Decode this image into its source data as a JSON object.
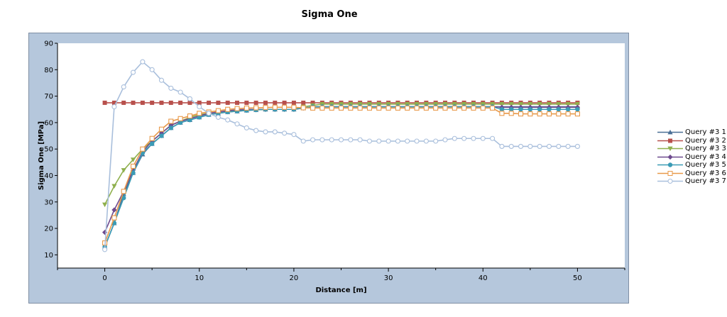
{
  "chart_data": {
    "type": "line",
    "title": "Sigma One",
    "xlabel": "Distance [m]",
    "ylabel": "Sigma One [MPa]",
    "xlim": [
      -5,
      55
    ],
    "ylim": [
      5,
      90
    ],
    "xticks": [
      0,
      10,
      20,
      30,
      40,
      50
    ],
    "yticks": [
      10,
      20,
      30,
      40,
      50,
      60,
      70,
      80,
      90
    ],
    "legend_position": "right",
    "series": [
      {
        "name": "Query #3 1",
        "color": "#4a6f96",
        "marker": "triangle-up",
        "x": [
          0,
          1,
          2,
          3,
          4,
          5,
          6,
          7,
          8,
          9,
          10,
          11,
          12,
          13,
          14,
          15,
          16,
          17,
          18,
          19,
          20,
          21,
          22,
          23,
          24,
          25,
          26,
          27,
          28,
          29,
          30,
          31,
          32,
          33,
          34,
          35,
          36,
          37,
          38,
          39,
          40,
          41,
          42,
          43,
          44,
          45,
          46,
          47,
          48,
          49,
          50
        ],
        "y": [
          13,
          22,
          33,
          41,
          48,
          52,
          55,
          58,
          60,
          61,
          62,
          63,
          63.5,
          64,
          64.3,
          64.6,
          64.8,
          65,
          65,
          65,
          65,
          65.5,
          66,
          66,
          66,
          66,
          66,
          66,
          66,
          66,
          66,
          66,
          66,
          66,
          66,
          66,
          66,
          66,
          66,
          66,
          66,
          66,
          66,
          66,
          66,
          66,
          66,
          66,
          66,
          66,
          66
        ]
      },
      {
        "name": "Query #3 2",
        "color": "#b8504c",
        "marker": "square",
        "x": [
          0,
          1,
          2,
          3,
          4,
          5,
          6,
          7,
          8,
          9,
          10,
          11,
          12,
          13,
          14,
          15,
          16,
          17,
          18,
          19,
          20,
          21,
          22,
          23,
          24,
          25,
          26,
          27,
          28,
          29,
          30,
          31,
          32,
          33,
          34,
          35,
          36,
          37,
          38,
          39,
          40,
          41,
          42,
          43,
          44,
          45,
          46,
          47,
          48,
          49,
          50
        ],
        "y": [
          67.5,
          67.5,
          67.5,
          67.5,
          67.5,
          67.5,
          67.5,
          67.5,
          67.5,
          67.5,
          67.5,
          67.5,
          67.5,
          67.5,
          67.5,
          67.5,
          67.5,
          67.5,
          67.5,
          67.5,
          67.5,
          67.5,
          67.5,
          67.5,
          67.5,
          67.5,
          67.5,
          67.5,
          67.5,
          67.5,
          67.5,
          67.5,
          67.5,
          67.5,
          67.5,
          67.5,
          67.5,
          67.5,
          67.5,
          67.5,
          67.5,
          67.5,
          67.5,
          67.5,
          67.5,
          67.5,
          67.5,
          67.5,
          67.5,
          67.5,
          67.5
        ]
      },
      {
        "name": "Query #3 3",
        "color": "#8fb04e",
        "marker": "triangle-down",
        "x": [
          0,
          1,
          2,
          3,
          4,
          5,
          6,
          7,
          8,
          9,
          10,
          11,
          12,
          13,
          14,
          15,
          16,
          17,
          18,
          19,
          20,
          21,
          22,
          23,
          24,
          25,
          26,
          27,
          28,
          29,
          30,
          31,
          32,
          33,
          34,
          35,
          36,
          37,
          38,
          39,
          40,
          41,
          42,
          43,
          44,
          45,
          46,
          47,
          48,
          49,
          50
        ],
        "y": [
          29,
          36,
          42,
          46,
          50,
          53,
          56,
          59,
          60.5,
          62,
          63,
          63.5,
          64,
          64.3,
          64.5,
          64.7,
          64.8,
          65,
          65,
          65,
          65,
          66,
          66.5,
          67,
          67,
          67,
          67,
          67,
          67,
          67,
          67,
          67,
          67,
          67,
          67,
          67,
          67,
          67,
          67,
          67,
          67,
          67,
          67,
          67,
          67,
          67,
          67,
          67,
          67,
          67,
          67
        ]
      },
      {
        "name": "Query #3 4",
        "color": "#6e4a8e",
        "marker": "diamond",
        "x": [
          0,
          1,
          2,
          3,
          4,
          5,
          6,
          7,
          8,
          9,
          10,
          11,
          12,
          13,
          14,
          15,
          16,
          17,
          18,
          19,
          20,
          21,
          22,
          23,
          24,
          25,
          26,
          27,
          28,
          29,
          30,
          31,
          32,
          33,
          34,
          35,
          36,
          37,
          38,
          39,
          40,
          41,
          42,
          43,
          44,
          45,
          46,
          47,
          48,
          49,
          50
        ],
        "y": [
          18.5,
          27,
          34,
          42,
          49,
          53,
          56,
          59,
          60.5,
          61.5,
          62.5,
          63.5,
          64,
          64.5,
          64.8,
          65,
          65,
          65,
          65,
          65,
          65,
          65.5,
          66,
          66,
          66,
          66,
          66,
          66,
          66,
          66,
          66,
          66,
          66,
          66,
          66,
          66,
          66,
          66,
          66,
          66,
          66,
          66,
          65.8,
          65.8,
          65.8,
          65.8,
          65.8,
          65.8,
          65.8,
          65.8,
          65.8
        ]
      },
      {
        "name": "Query #3 5",
        "color": "#3a9bb5",
        "marker": "circle",
        "x": [
          0,
          1,
          2,
          3,
          4,
          5,
          6,
          7,
          8,
          9,
          10,
          11,
          12,
          13,
          14,
          15,
          16,
          17,
          18,
          19,
          20,
          21,
          22,
          23,
          24,
          25,
          26,
          27,
          28,
          29,
          30,
          31,
          32,
          33,
          34,
          35,
          36,
          37,
          38,
          39,
          40,
          41,
          42,
          43,
          44,
          45,
          46,
          47,
          48,
          49,
          50
        ],
        "y": [
          13,
          22,
          31.5,
          41,
          48.5,
          52,
          55,
          58,
          60,
          61,
          62,
          63,
          63.5,
          64,
          64.3,
          64.6,
          64.8,
          65,
          65,
          65,
          65,
          65.5,
          66,
          66,
          66,
          66,
          66,
          66,
          66,
          66,
          66,
          66,
          66,
          66,
          66,
          66,
          66,
          66,
          66,
          66,
          66,
          66,
          65,
          65,
          65,
          65,
          65,
          65,
          65,
          65,
          65
        ]
      },
      {
        "name": "Query #3 6",
        "color": "#e8994a",
        "marker": "square-open",
        "x": [
          0,
          1,
          2,
          3,
          4,
          5,
          6,
          7,
          8,
          9,
          10,
          11,
          12,
          13,
          14,
          15,
          16,
          17,
          18,
          19,
          20,
          21,
          22,
          23,
          24,
          25,
          26,
          27,
          28,
          29,
          30,
          31,
          32,
          33,
          34,
          35,
          36,
          37,
          38,
          39,
          40,
          41,
          42,
          43,
          44,
          45,
          46,
          47,
          48,
          49,
          50
        ],
        "y": [
          14.5,
          24,
          34,
          43.5,
          50,
          54,
          57.5,
          60.5,
          61.5,
          62.5,
          63.5,
          64,
          64.5,
          65,
          65.3,
          65.5,
          65.6,
          65.7,
          65.8,
          65.8,
          65.8,
          65.6,
          65.5,
          65.5,
          65.5,
          65.5,
          65.5,
          65.5,
          65.5,
          65.5,
          65.5,
          65.5,
          65.5,
          65.5,
          65.5,
          65.5,
          65.5,
          65.5,
          65.5,
          65.5,
          65.5,
          65.5,
          63.5,
          63.5,
          63.3,
          63.3,
          63.3,
          63.3,
          63.3,
          63.3,
          63.3
        ]
      },
      {
        "name": "Query #3 7",
        "color": "#a9bfdc",
        "marker": "circle-open",
        "x": [
          0,
          1,
          2,
          3,
          4,
          5,
          6,
          7,
          8,
          9,
          10,
          11,
          12,
          13,
          14,
          15,
          16,
          17,
          18,
          19,
          20,
          21,
          22,
          23,
          24,
          25,
          26,
          27,
          28,
          29,
          30,
          31,
          32,
          33,
          34,
          35,
          36,
          37,
          38,
          39,
          40,
          41,
          42,
          43,
          44,
          45,
          46,
          47,
          48,
          49,
          50
        ],
        "y": [
          12,
          66,
          73.5,
          79,
          83,
          80,
          76,
          73,
          71.5,
          69,
          66,
          63.5,
          62,
          61,
          59.5,
          58,
          57,
          56.5,
          56.5,
          56,
          55.5,
          53,
          53.5,
          53.5,
          53.5,
          53.5,
          53.5,
          53.5,
          53,
          53,
          53,
          53,
          53,
          53,
          53,
          53,
          53.5,
          54,
          54,
          54,
          54,
          54,
          51,
          51,
          51,
          51,
          51,
          51,
          51,
          51,
          51
        ]
      }
    ]
  }
}
